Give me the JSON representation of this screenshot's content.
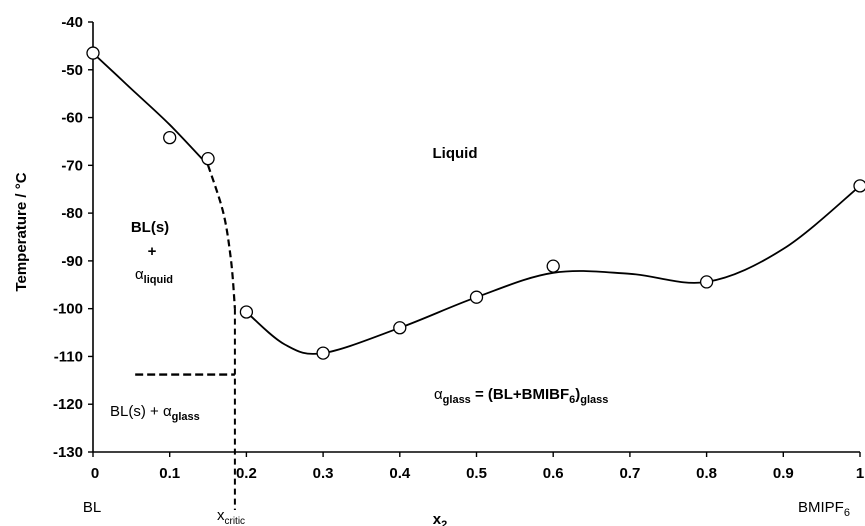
{
  "chart_data": {
    "type": "scatter",
    "title": "",
    "xlabel": "x",
    "xlabel_sub": "2",
    "ylabel": "Temperature / °C",
    "xlim": [
      0,
      1
    ],
    "ylim": [
      -130,
      -40
    ],
    "grid": false,
    "x_ticks": [
      "0",
      "0.1",
      "0.2",
      "0.3",
      "0.4",
      "0.5",
      "0.6",
      "0.7",
      "0.8",
      "0.9",
      "1"
    ],
    "y_ticks": [
      "-40",
      "-50",
      "-60",
      "-70",
      "-80",
      "-90",
      "-100",
      "-110",
      "-120",
      "-130"
    ],
    "endpoints": {
      "left_main": "BL",
      "right_main": "BMIPF",
      "right_sub": "6"
    },
    "x_critic": {
      "main": "x",
      "sub": "critic",
      "x": 0.185
    },
    "points": [
      {
        "x": 0.0,
        "y": -46.5
      },
      {
        "x": 0.1,
        "y": -64.2
      },
      {
        "x": 0.15,
        "y": -68.6
      },
      {
        "x": 0.2,
        "y": -100.7
      },
      {
        "x": 0.3,
        "y": -109.3
      },
      {
        "x": 0.4,
        "y": -104.0
      },
      {
        "x": 0.5,
        "y": -97.6
      },
      {
        "x": 0.6,
        "y": -91.1
      },
      {
        "x": 0.8,
        "y": -94.4
      },
      {
        "x": 1.0,
        "y": -74.3
      }
    ],
    "curve_left": [
      [
        0.0,
        -46.5
      ],
      [
        0.05,
        -54.0
      ],
      [
        0.1,
        -61.5
      ],
      [
        0.15,
        -70.0
      ]
    ],
    "curve_right": [
      [
        0.2,
        -100.7
      ],
      [
        0.25,
        -107.5
      ],
      [
        0.3,
        -109.3
      ],
      [
        0.4,
        -104.0
      ],
      [
        0.5,
        -97.6
      ],
      [
        0.6,
        -92.5
      ],
      [
        0.7,
        -92.7
      ],
      [
        0.8,
        -94.4
      ],
      [
        0.9,
        -87.5
      ],
      [
        1.0,
        -74.3
      ]
    ],
    "dashed_liquidus": [
      [
        0.15,
        -70.0
      ],
      [
        0.17,
        -80.0
      ],
      [
        0.18,
        -90.0
      ],
      [
        0.185,
        -100.0
      ]
    ],
    "dashed_horizontal": {
      "x1": 0.055,
      "x2": 0.185,
      "y": -113.8
    },
    "annotations": {
      "liquid": "Liquid",
      "bl_solid": "BL(s)",
      "plus": "+",
      "alpha_liquid_sym": "α",
      "alpha_liquid_sub": "liquid",
      "bl_s_plus": "BL(s) + ",
      "alpha_glass_sym": "α",
      "alpha_glass_sub": "glass",
      "eq_sym": "α",
      "eq_sub": "glass",
      "eq_mid": " = (BL+BMIBF",
      "eq_sub6": "6",
      "eq_paren": ")",
      "eq_sub_end": "glass"
    }
  }
}
